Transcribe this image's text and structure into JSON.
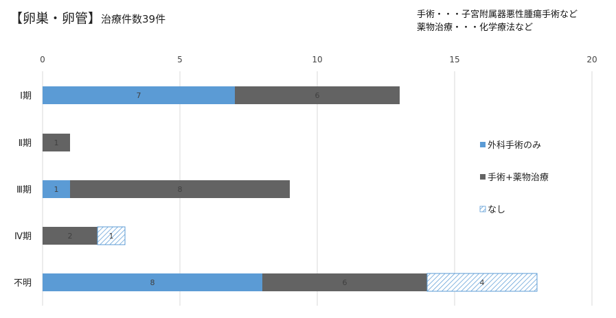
{
  "header": {
    "title_main": "【卵巣・卵管】",
    "title_sub": "治療件数39件"
  },
  "notes": {
    "line1": "手術・・・子宮附属器悪性腫瘍手術など",
    "line2": "薬物治療・・・化学療法など"
  },
  "chart_data": {
    "type": "bar",
    "orientation": "horizontal",
    "stacked": true,
    "categories": [
      "Ⅰ期",
      "Ⅱ期",
      "Ⅲ期",
      "Ⅳ期",
      "不明"
    ],
    "series": [
      {
        "name": "外科手術のみ",
        "values": [
          7,
          0,
          1,
          0,
          8
        ],
        "color": "#5b9bd5",
        "pattern": "solid"
      },
      {
        "name": "手術+薬物治療",
        "values": [
          6,
          1,
          8,
          2,
          6
        ],
        "color": "#636363",
        "pattern": "solid"
      },
      {
        "name": "なし",
        "values": [
          0,
          0,
          0,
          1,
          4
        ],
        "color": "#5b9bd5",
        "pattern": "diagonal-hatch"
      }
    ],
    "xlim": [
      0,
      20
    ],
    "xticks": [
      0,
      5,
      10,
      15,
      20
    ],
    "x_axis_position": "top",
    "grid": true,
    "legend": "right"
  }
}
